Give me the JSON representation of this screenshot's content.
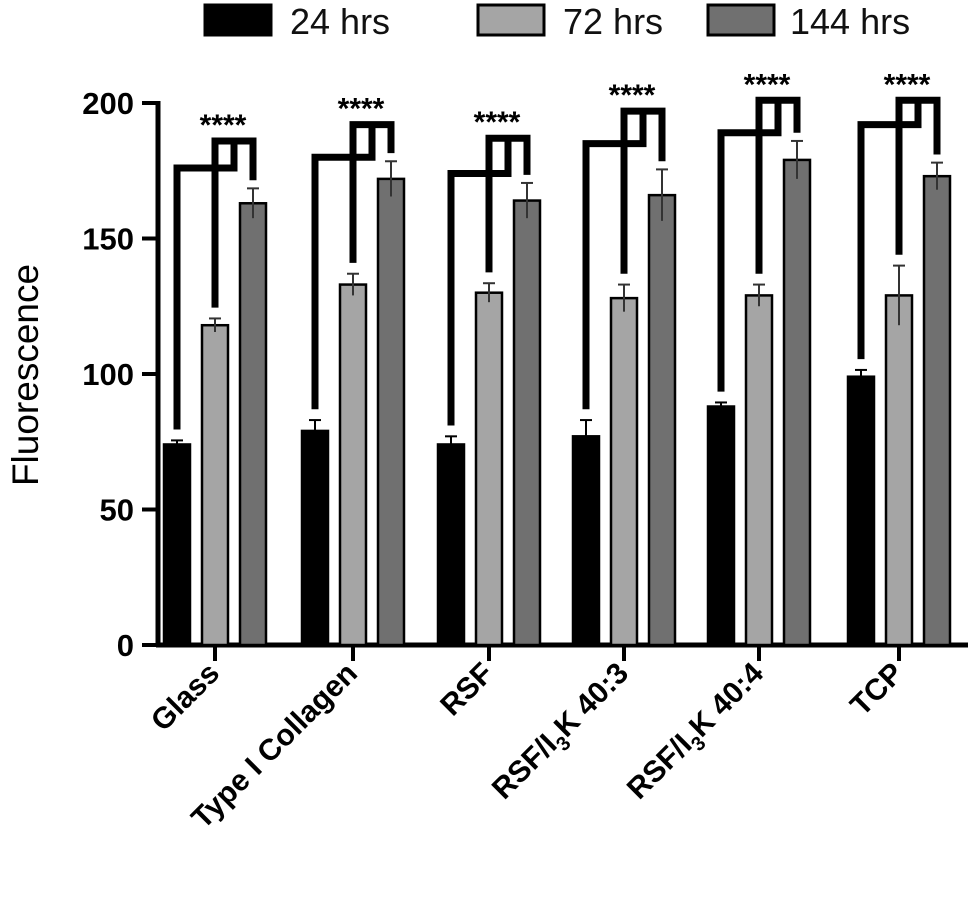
{
  "chart_data": {
    "type": "bar",
    "title": "",
    "xlabel": "",
    "ylabel": "Fluorescence",
    "ylim": [
      0,
      200
    ],
    "yticks": [
      "0",
      "50",
      "100",
      "150",
      "200"
    ],
    "legend_position": "top",
    "categories": [
      "Glass",
      "Type I Collagen",
      "RSF",
      "RSF/I3K 40:3",
      "RSF/I3K 40:4",
      "TCP"
    ],
    "category_labels": [
      {
        "main": "Glass",
        "sub": "",
        "rest": ""
      },
      {
        "main": "Type I Collagen",
        "sub": "",
        "rest": ""
      },
      {
        "main": "RSF",
        "sub": "",
        "rest": ""
      },
      {
        "main": "RSF/I",
        "sub": "3",
        "rest": "K 40:3"
      },
      {
        "main": "RSF/I",
        "sub": "3",
        "rest": "K 40:4"
      },
      {
        "main": "TCP",
        "sub": "",
        "rest": ""
      }
    ],
    "series": [
      {
        "name": "24 hrs",
        "color": "#000000",
        "values": [
          74,
          79,
          74,
          77,
          88,
          99
        ],
        "errors": [
          1.5,
          4,
          3,
          6,
          1.5,
          2.5
        ]
      },
      {
        "name": "72 hrs",
        "color": "#a5a5a5",
        "values": [
          118,
          133,
          130,
          128,
          129,
          129
        ],
        "errors": [
          2.5,
          4,
          3.5,
          5,
          4,
          11
        ]
      },
      {
        "name": "144 hrs",
        "color": "#707070",
        "values": [
          163,
          172,
          164,
          166,
          179,
          173
        ],
        "errors": [
          5.5,
          6.5,
          6.5,
          9.5,
          7,
          5
        ]
      }
    ],
    "significance": [
      {
        "label": "****",
        "bracket_y": [
          176,
          186
        ]
      },
      {
        "label": "****",
        "bracket_y": [
          180,
          192
        ]
      },
      {
        "label": "****",
        "bracket_y": [
          174,
          187
        ]
      },
      {
        "label": "****",
        "bracket_y": [
          185,
          197
        ]
      },
      {
        "label": "****",
        "bracket_y": [
          189,
          201
        ]
      },
      {
        "label": "****",
        "bracket_y": [
          192,
          201
        ]
      }
    ]
  }
}
